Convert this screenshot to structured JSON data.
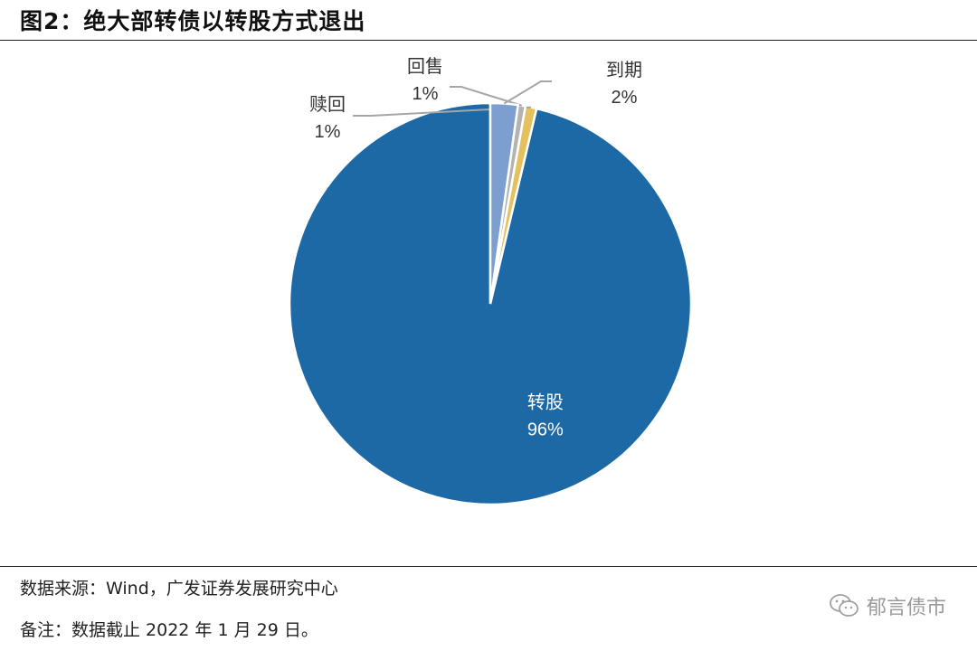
{
  "title": "图2：绝大部转债以转股方式退出",
  "chart_data": {
    "type": "pie",
    "slices": [
      {
        "name": "转股",
        "label": "96%",
        "value": 96.3,
        "color": "#1c69a6"
      },
      {
        "name": "赎回",
        "label": "1%",
        "value": 0.9,
        "color": "#e3c15e"
      },
      {
        "name": "回售",
        "label": "1%",
        "value": 0.6,
        "color": "#b3b3b3"
      },
      {
        "name": "到期",
        "label": "2%",
        "value": 2.2,
        "color": "#7d9fcf"
      }
    ],
    "start_angle_deg": 0,
    "direction": "counterclockwise",
    "legend": "none"
  },
  "footer": {
    "source": "数据来源：Wind，广发证券发展研究中心",
    "note": "备注：数据截止 2022 年 1 月 29 日。"
  },
  "watermark": {
    "icon": "wechat-icon",
    "text": "郁言债市"
  }
}
